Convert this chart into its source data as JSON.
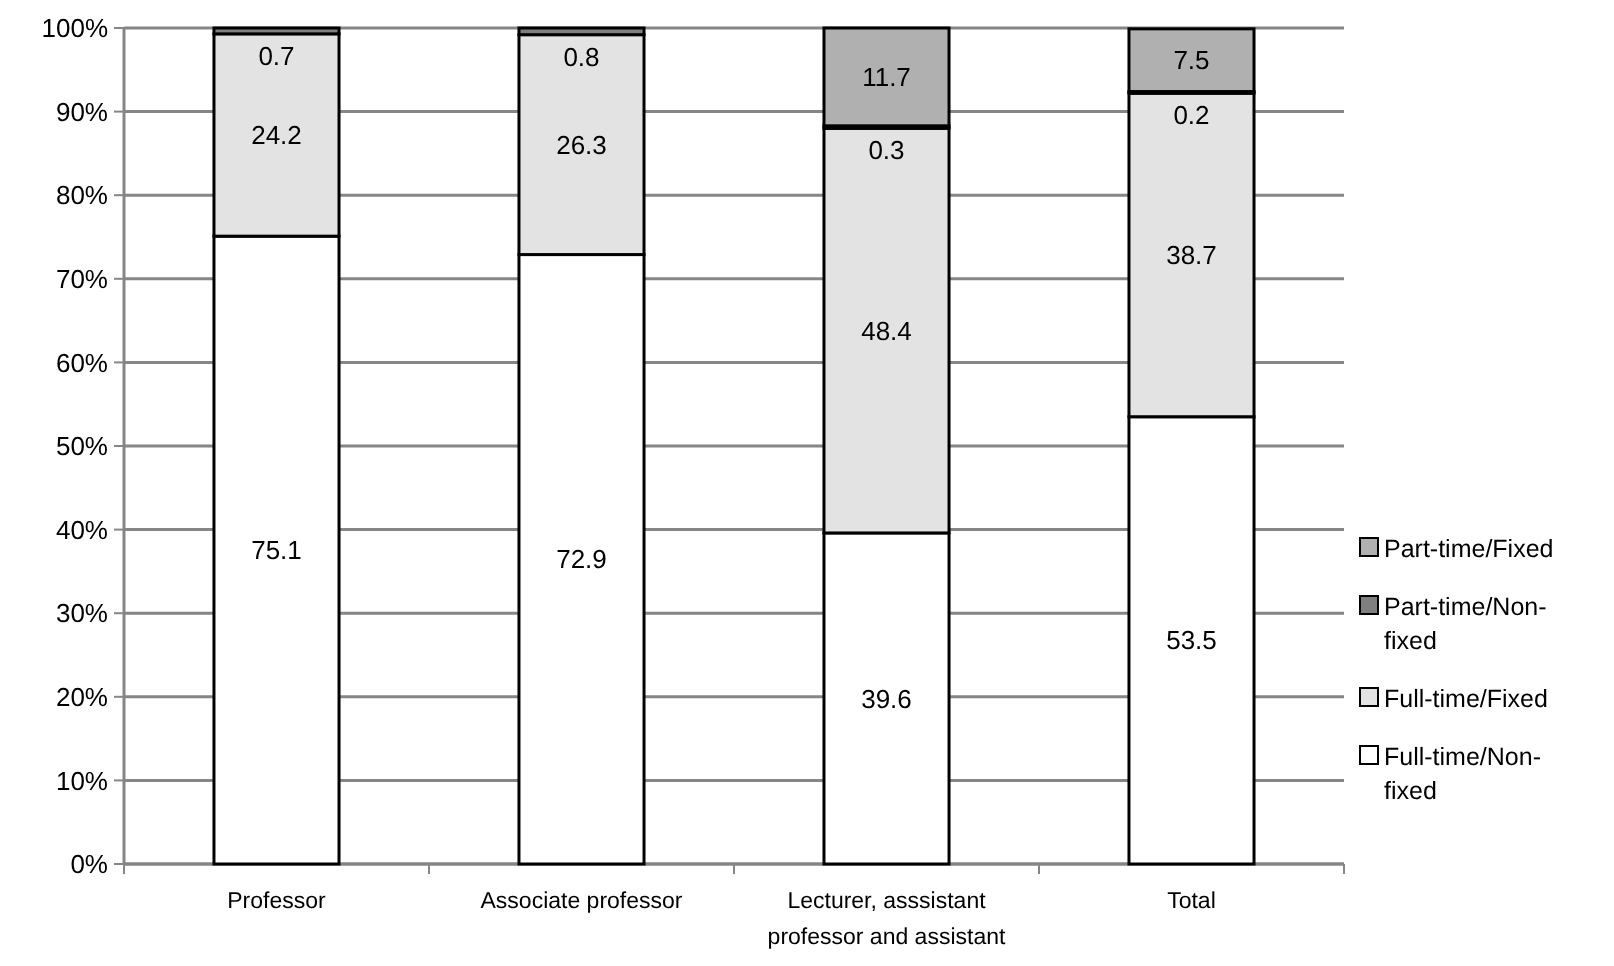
{
  "chart_data": {
    "type": "bar",
    "stacked": true,
    "categories": [
      "Professor",
      "Associate professor",
      "Lecturer, asssistant professor and assistant",
      "Total"
    ],
    "series": [
      {
        "name": "Full-time/Non-fixed",
        "color": "#ffffff",
        "values": [
          75.1,
          72.9,
          39.6,
          53.5
        ],
        "value_labels": [
          "75.1",
          "72.9",
          "39.6",
          "53.5"
        ]
      },
      {
        "name": "Full-time/Fixed",
        "color": "#e3e3e3",
        "values": [
          24.2,
          26.3,
          48.4,
          38.7
        ],
        "value_labels": [
          "24.2",
          "26.3",
          "48.4",
          "38.7"
        ]
      },
      {
        "name": "Part-time/Non-fixed",
        "color": "#7f7f7f",
        "values": [
          0.7,
          0.8,
          0.3,
          0.2
        ],
        "value_labels": [
          "0.7",
          "0.8",
          "0.3",
          "0.2"
        ]
      },
      {
        "name": "Part-time/Fixed",
        "color": "#b0b0b0",
        "values": [
          0,
          0,
          11.7,
          7.5
        ],
        "value_labels": [
          null,
          null,
          "11.7",
          "7.5"
        ]
      }
    ],
    "ylim": [
      0,
      100
    ],
    "yticks": [
      {
        "value": 0,
        "label": "0%"
      },
      {
        "value": 10,
        "label": "10%"
      },
      {
        "value": 20,
        "label": "20%"
      },
      {
        "value": 30,
        "label": "30%"
      },
      {
        "value": 40,
        "label": "40%"
      },
      {
        "value": 50,
        "label": "50%"
      },
      {
        "value": 60,
        "label": "60%"
      },
      {
        "value": 70,
        "label": "70%"
      },
      {
        "value": 80,
        "label": "80%"
      },
      {
        "value": 90,
        "label": "90%"
      },
      {
        "value": 100,
        "label": "100%"
      }
    ],
    "grid": "y",
    "legend": "right"
  }
}
